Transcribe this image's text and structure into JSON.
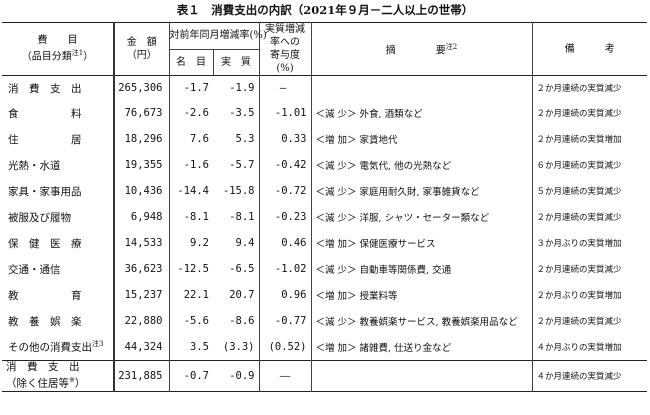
{
  "title": "表１　消費支出の内訳（2021年９月－二人以上の世帯）",
  "header": {
    "item_label_1": "費　　目",
    "item_label_2": "（品目分類",
    "item_note": "注1",
    "item_label_close": "）",
    "amount_1": "金　額",
    "amount_2": "（円）",
    "yoy": "対前年同月増減率(%)",
    "nominal": "名　目",
    "real": "実　質",
    "contribution_1": "実質増減",
    "contribution_2": "率への",
    "contribution_3": "寄与度",
    "contribution_4": "(%)",
    "summary": "摘　　　　要",
    "summary_note": "注2",
    "remarks": "備　　　考"
  },
  "rows": [
    {
      "item": "消　費　支　出",
      "amount": "265,306",
      "nominal": "-1.7",
      "real": "-1.9",
      "contrib": "―",
      "summary": "",
      "remarks": "２か月連続の実質減少"
    },
    {
      "item": "食　　　　　料",
      "amount": "76,673",
      "nominal": "-2.6",
      "real": "-3.5",
      "contrib": "-1.01",
      "summary": "＜減 少＞ 外食, 酒類など",
      "remarks": "２か月連続の実質減少"
    },
    {
      "item": "住　　　　　居",
      "amount": "18,296",
      "nominal": "7.6",
      "real": "5.3",
      "contrib": "0.33",
      "summary": "＜増 加＞ 家賃地代",
      "remarks": "２か月連続の実質増加"
    },
    {
      "item": "光熱・水道",
      "amount": "19,355",
      "nominal": "-1.6",
      "real": "-5.7",
      "contrib": "-0.42",
      "summary": "＜減 少＞ 電気代, 他の光熱など",
      "remarks": "６か月連続の実質減少"
    },
    {
      "item": "家具・家事用品",
      "amount": "10,436",
      "nominal": "-14.4",
      "real": "-15.8",
      "contrib": "-0.72",
      "summary": "＜減 少＞ 家庭用耐久財, 家事雑貨など",
      "remarks": "５か月連続の実質減少"
    },
    {
      "item": "被服及び履物",
      "amount": "6,948",
      "nominal": "-8.1",
      "real": "-8.1",
      "contrib": "-0.23",
      "summary": "＜減 少＞ 洋服, シャツ・セーター類など",
      "remarks": "２か月連続の実質減少"
    },
    {
      "item": "保　健　医　療",
      "amount": "14,533",
      "nominal": "9.2",
      "real": "9.4",
      "contrib": "0.46",
      "summary": "＜増 加＞ 保健医療サービス",
      "remarks": "３か月ぶりの実質増加"
    },
    {
      "item": "交通・通信",
      "amount": "36,623",
      "nominal": "-12.5",
      "real": "-6.5",
      "contrib": "-1.02",
      "summary": "＜減 少＞ 自動車等関係費, 交通",
      "remarks": "２か月連続の実質減少"
    },
    {
      "item": "教　　　　　育",
      "amount": "15,237",
      "nominal": "22.1",
      "real": "20.7",
      "contrib": "0.96",
      "summary": "＜増 加＞ 授業料等",
      "remarks": "２か月ぶりの実質増加"
    },
    {
      "item": "教　養　娯　楽",
      "amount": "22,880",
      "nominal": "-5.6",
      "real": "-8.6",
      "contrib": "-0.77",
      "summary": "＜減 少＞ 教養娯楽サービス, 教養娯楽用品など",
      "remarks": "２か月連続の実質減少"
    },
    {
      "item": "その他の消費支出",
      "item_note": "注3",
      "amount": "44,324",
      "nominal": "3.5",
      "real": "(3.3)",
      "contrib": "(0.52)",
      "summary": "＜増 加＞ 諸雑費, 仕送り金など",
      "remarks": "４か月ぶりの実質増加"
    }
  ],
  "last_row": {
    "item_1": "消　費　支　出",
    "item_2": "（除く住居等",
    "item_note": "※",
    "item_close": "）",
    "amount": "231,885",
    "nominal": "-0.7",
    "real": "-0.9",
    "contrib": "―",
    "summary": "",
    "remarks": "４か月連続の実質減少"
  }
}
